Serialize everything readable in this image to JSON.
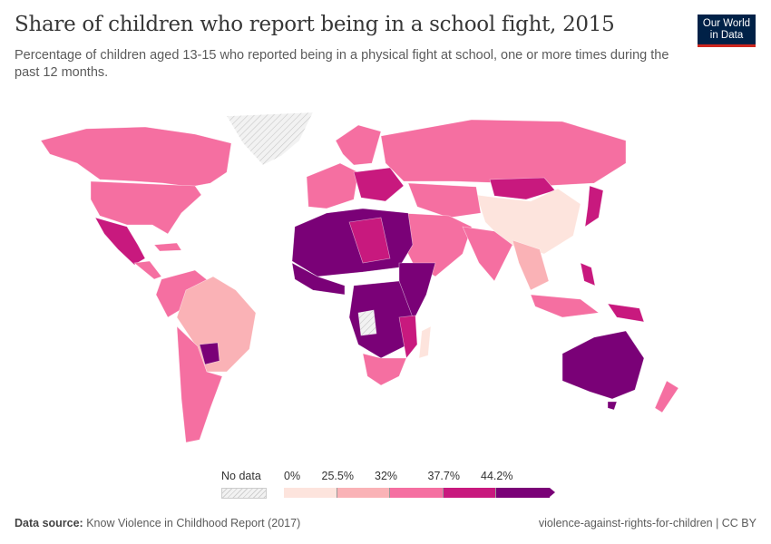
{
  "header": {
    "title": "Share of children who report being in a school fight, 2015",
    "subtitle": "Percentage of children aged 13-15 who reported being in a physical fight at school, one or more times during the past 12 months.",
    "logo": "Our World in Data"
  },
  "legend": {
    "no_data_label": "No data",
    "bins": [
      "0%",
      "25.5%",
      "32%",
      "37.7%",
      "44.2%"
    ],
    "colors": [
      "#fde4dd",
      "#fab2b6",
      "#f56fa1",
      "#c8197e",
      "#7a0177"
    ],
    "no_data_color": "#e6e6e6"
  },
  "footer": {
    "source_label": "Data source:",
    "source": "Know Violence in Childhood Report (2017)",
    "right": "violence-against-rights-for-children | CC BY"
  }
}
